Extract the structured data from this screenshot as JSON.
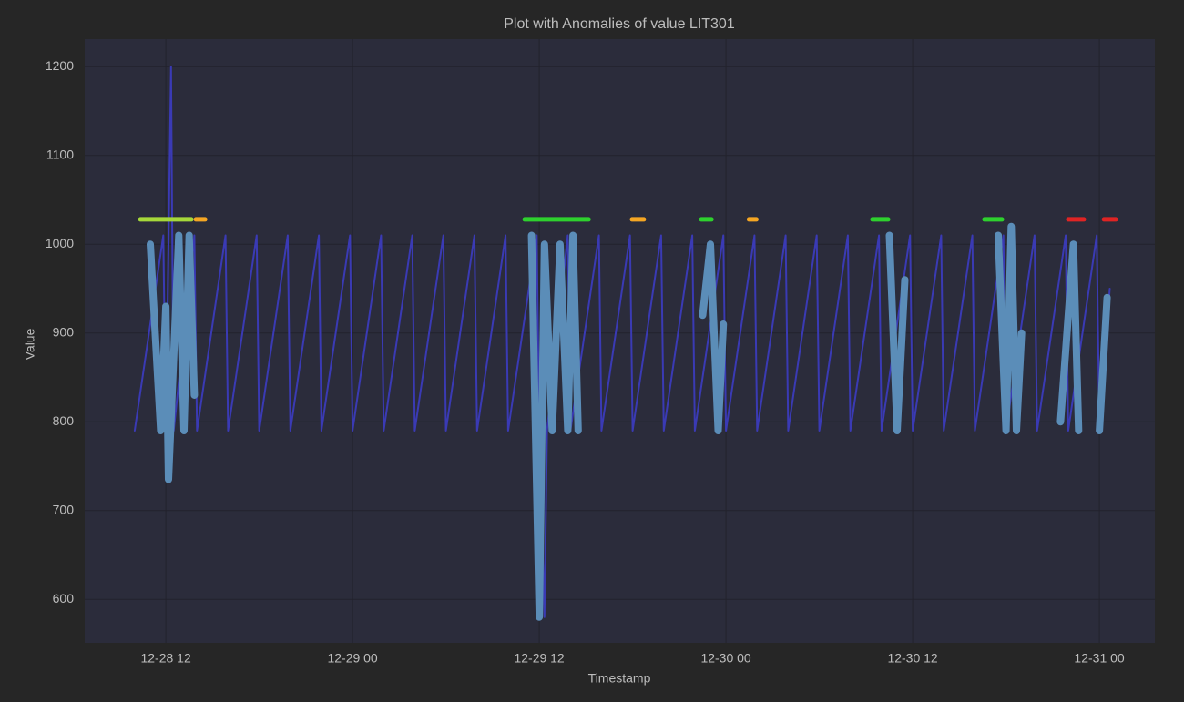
{
  "chart_data": {
    "type": "line",
    "title": "Plot with Anomalies of value LIT301",
    "x_label": "Timestamp",
    "y_label": "Value",
    "xlim": [
      "12-28 06:47",
      "12-31 03:34"
    ],
    "xticks": [
      "12-28 12",
      "12-29 00",
      "12-29 12",
      "12-30 00",
      "12-30 12",
      "12-31 00"
    ],
    "ylim": [
      551,
      1231
    ],
    "yticks": [
      600,
      700,
      800,
      900,
      1000,
      1100,
      1200
    ],
    "grid": true,
    "series": [
      {
        "color": "#3a3ab4",
        "width": 2,
        "x": [
          "12-28 10:00",
          "12-28 11:50",
          "12-28 12:00",
          "12-28 12:20",
          "12-28 12:30",
          "12-28 13:50",
          "12-28 14:00",
          "12-28 15:50",
          "12-28 16:00",
          "12-28 17:50",
          "12-28 18:00",
          "12-28 19:50",
          "12-28 20:00",
          "12-28 21:50",
          "12-28 22:00",
          "12-28 23:50",
          "12-29 00:00",
          "12-29 01:50",
          "12-29 02:00",
          "12-29 03:50",
          "12-29 04:00",
          "12-29 05:50",
          "12-29 06:00",
          "12-29 07:50",
          "12-29 08:00",
          "12-29 09:50",
          "12-29 10:00",
          "12-29 11:50",
          "12-29 12:00",
          "12-29 12:20",
          "12-29 12:30",
          "12-29 13:50",
          "12-29 14:00",
          "12-29 15:50",
          "12-29 16:00",
          "12-29 17:50",
          "12-29 18:00",
          "12-29 19:50",
          "12-29 20:00",
          "12-29 21:50",
          "12-29 22:00",
          "12-29 23:50",
          "12-30 00:00",
          "12-30 01:50",
          "12-30 02:00",
          "12-30 03:50",
          "12-30 04:00",
          "12-30 05:50",
          "12-30 06:00",
          "12-30 07:50",
          "12-30 08:00",
          "12-30 09:50",
          "12-30 10:00",
          "12-30 11:50",
          "12-30 12:00",
          "12-30 13:50",
          "12-30 14:00",
          "12-30 15:50",
          "12-30 16:00",
          "12-30 17:50",
          "12-30 18:00",
          "12-30 19:50",
          "12-30 20:00",
          "12-30 21:50",
          "12-30 22:00",
          "12-30 23:50",
          "12-31 00:00",
          "12-31 00:40"
        ],
        "values": [
          790,
          1010,
          790,
          1200,
          790,
          1010,
          790,
          1010,
          790,
          1010,
          790,
          1010,
          790,
          1010,
          790,
          1010,
          790,
          1010,
          790,
          1010,
          790,
          1010,
          790,
          1010,
          790,
          1010,
          790,
          1010,
          790,
          580,
          790,
          1010,
          790,
          1010,
          790,
          1010,
          790,
          1010,
          790,
          1010,
          790,
          1010,
          790,
          1010,
          790,
          1010,
          790,
          1010,
          790,
          1010,
          790,
          1010,
          790,
          1010,
          790,
          1010,
          790,
          1010,
          790,
          1010,
          790,
          1010,
          790,
          1010,
          790,
          1010,
          790,
          950
        ]
      },
      {
        "color": "#5b8db8",
        "width": 8,
        "x": [
          "12-28 11:00",
          "12-28 11:40",
          "12-28 12:00",
          "12-28 12:10",
          "12-28 12:50",
          "12-28 13:10",
          "12-28 13:30",
          "12-28 13:50",
          "12-28 14:00",
          "12-29 11:30",
          "12-29 12:00",
          "12-29 12:20",
          "12-29 12:50",
          "12-29 13:20",
          "12-29 13:50",
          "12-29 14:10",
          "12-29 14:30",
          "12-29 14:40",
          "12-29 22:30",
          "12-29 23:00",
          "12-29 23:30",
          "12-29 23:50",
          "12-30 00:00",
          "12-30 10:30",
          "12-30 11:00",
          "12-30 11:30",
          "12-30 11:40",
          "12-30 17:30",
          "12-30 18:00",
          "12-30 18:20",
          "12-30 18:40",
          "12-30 19:00",
          "12-30 19:10",
          "12-30 21:30",
          "12-30 22:20",
          "12-30 22:40",
          "12-30 22:50",
          "12-31 00:00",
          "12-31 00:30"
        ],
        "values": [
          1000,
          790,
          930,
          735,
          1010,
          790,
          1010,
          830,
          null,
          1010,
          580,
          1000,
          790,
          1000,
          790,
          1010,
          790,
          null,
          920,
          1000,
          790,
          910,
          null,
          1010,
          790,
          960,
          null,
          1010,
          790,
          1020,
          790,
          900,
          null,
          800,
          1000,
          790,
          null,
          790,
          940
        ]
      }
    ],
    "markers": [
      {
        "start": "12-28 10:22",
        "end": "12-28 13:38",
        "value": 1028,
        "color": "#a6d83a"
      },
      {
        "start": "12-28 13:56",
        "end": "12-28 14:31",
        "value": 1028,
        "color": "#f5a623"
      },
      {
        "start": "12-29 11:04",
        "end": "12-29 15:10",
        "value": 1028,
        "color": "#2ed12e"
      },
      {
        "start": "12-29 17:58",
        "end": "12-29 18:43",
        "value": 1028,
        "color": "#f5a623"
      },
      {
        "start": "12-29 22:25",
        "end": "12-29 23:04",
        "value": 1028,
        "color": "#2ed12e"
      },
      {
        "start": "12-30 01:29",
        "end": "12-30 01:57",
        "value": 1028,
        "color": "#f5a623"
      },
      {
        "start": "12-30 09:25",
        "end": "12-30 10:25",
        "value": 1028,
        "color": "#2ed12e"
      },
      {
        "start": "12-30 16:37",
        "end": "12-30 17:44",
        "value": 1028,
        "color": "#2ed12e"
      },
      {
        "start": "12-30 22:00",
        "end": "12-30 23:00",
        "value": 1028,
        "color": "#e02424"
      },
      {
        "start": "12-31 00:18",
        "end": "12-31 01:03",
        "value": 1028,
        "color": "#e02424"
      }
    ]
  }
}
